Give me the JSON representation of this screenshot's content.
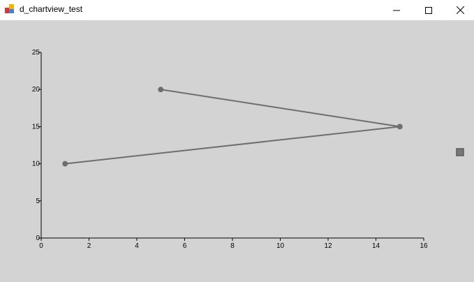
{
  "window": {
    "title": "d_chartview_test",
    "icon": "app-icon",
    "buttons": [
      "minimize",
      "maximize",
      "close"
    ]
  },
  "chart_data": {
    "type": "line",
    "title": "",
    "xlabel": "",
    "ylabel": "",
    "xlim": [
      0,
      16
    ],
    "ylim": [
      0,
      25
    ],
    "xticks": [
      0,
      2,
      4,
      6,
      8,
      10,
      12,
      14,
      16
    ],
    "yticks": [
      0,
      5,
      10,
      15,
      20,
      25
    ],
    "grid": false,
    "legend": "right",
    "series": [
      {
        "color": "#6e6e6e",
        "markers": true,
        "points": [
          [
            1,
            10
          ],
          [
            15,
            15
          ],
          [
            5,
            20
          ]
        ]
      }
    ]
  }
}
